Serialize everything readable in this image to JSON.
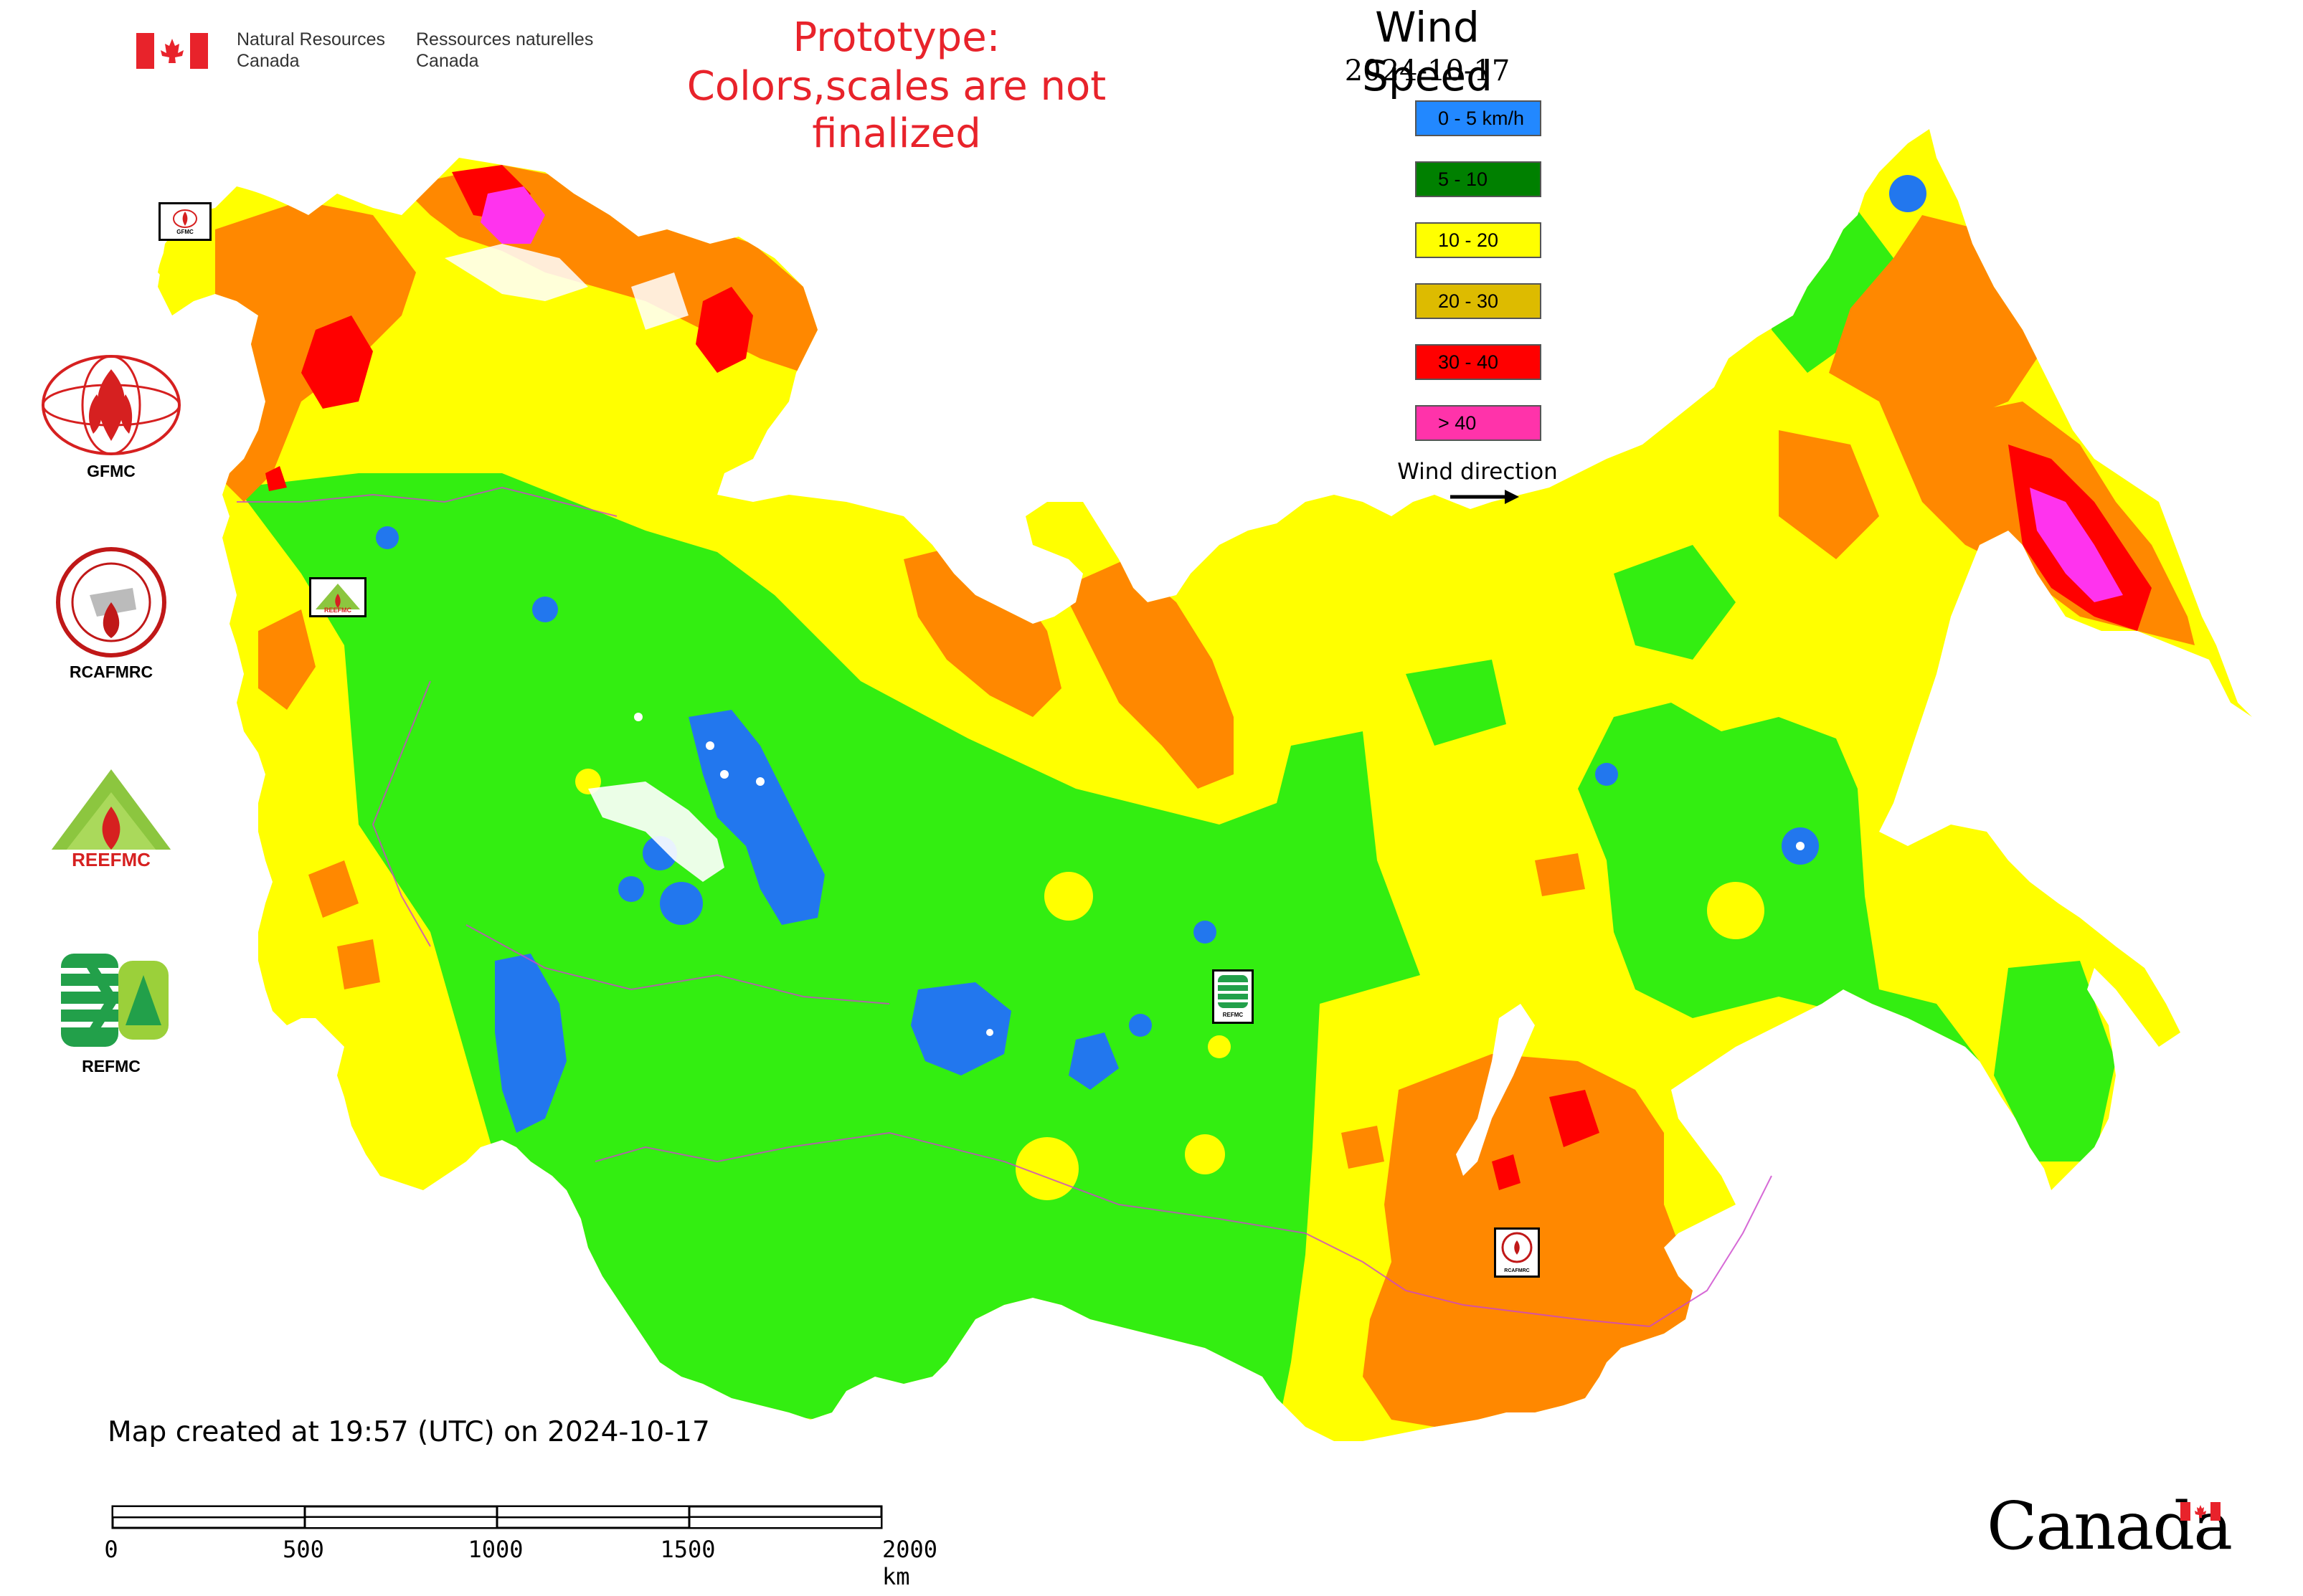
{
  "header": {
    "department_en": "Natural Resources\nCanada",
    "department_fr": "Ressources naturelles\nCanada",
    "prototype_line1": "Prototype:",
    "prototype_line2": "Colors,scales are not finalized"
  },
  "legend": {
    "title": "Wind Speed",
    "date": "2024-10-17",
    "items": [
      {
        "label": "0 - 5 km/h",
        "color": "#2288ff"
      },
      {
        "label": "5 - 10",
        "color": "#008000"
      },
      {
        "label": "10 - 20",
        "color": "#ffff00"
      },
      {
        "label": "20 - 30",
        "color": "#ddbb00"
      },
      {
        "label": "30 - 40",
        "color": "#ff0000"
      },
      {
        "label": "> 40",
        "color": "#ff33aa"
      }
    ],
    "wind_direction_label": "Wind direction"
  },
  "side_logos": [
    {
      "label": "GFMC",
      "icon": "gfmc-globe-flame-logo"
    },
    {
      "label": "RCAFMRC",
      "icon": "rcafmrc-seal-logo"
    },
    {
      "label": "",
      "icon": "reefmc-triangle-logo",
      "wordmark": "REEFMC"
    },
    {
      "label": "REFMC",
      "icon": "refmc-sigma-logo"
    }
  ],
  "map_markers": [
    {
      "label": "GFMC"
    },
    {
      "label": "REEFMC"
    },
    {
      "label": "REFMC"
    },
    {
      "label": "RCAFMRC"
    }
  ],
  "map_colors": {
    "calm": "#2277ee",
    "light": "#33ee11",
    "moderate": "#ffff00",
    "fresh": "#ff8800",
    "strong": "#ff0000",
    "gale": "#ff33ee",
    "boundary": "#cc44cc",
    "water": "#ffffff"
  },
  "footer": {
    "created": "Map created at 19:57 (UTC) on 2024-10-17",
    "scale_ticks": [
      "0",
      "500",
      "1000",
      "1500",
      "2000 km"
    ],
    "wordmark": "Canada"
  }
}
